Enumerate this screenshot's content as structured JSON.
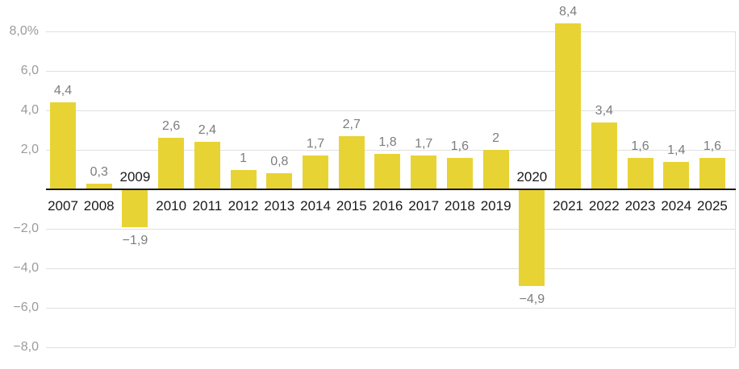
{
  "chart_data": {
    "type": "bar",
    "title": "",
    "xlabel": "",
    "ylabel": "",
    "categories": [
      "2007",
      "2008",
      "2009",
      "2010",
      "2011",
      "2012",
      "2013",
      "2014",
      "2015",
      "2016",
      "2017",
      "2018",
      "2019",
      "2020",
      "2021",
      "2022",
      "2023",
      "2024",
      "2025"
    ],
    "values": [
      4.4,
      0.3,
      -1.9,
      2.6,
      2.4,
      1,
      0.8,
      1.7,
      2.7,
      1.8,
      1.7,
      1.6,
      2,
      -4.9,
      8.4,
      3.4,
      1.6,
      1.4,
      1.6
    ],
    "value_labels": [
      "4,4",
      "0,3",
      "−1,9",
      "2,6",
      "2,4",
      "1",
      "0,8",
      "1,7",
      "2,7",
      "1,8",
      "1,7",
      "1,6",
      "2",
      "−4,9",
      "8,4",
      "3,4",
      "1,6",
      "1,4",
      "1,6"
    ],
    "ylim": [
      -8.6,
      8.9
    ],
    "y_ticks": [
      {
        "value": 8,
        "label": "8,0%"
      },
      {
        "value": 6,
        "label": "6,0"
      },
      {
        "value": 4,
        "label": "4,0"
      },
      {
        "value": 2,
        "label": "2,0"
      },
      {
        "value": -2,
        "label": "−2,0"
      },
      {
        "value": -4,
        "label": "−4,0"
      },
      {
        "value": -6,
        "label": "−6,0"
      },
      {
        "value": -8,
        "label": "−8,0"
      }
    ],
    "grid": true,
    "legend": false,
    "colors": {
      "bar": "#E8D334",
      "grid": "#E0E0E0",
      "baseline": "#1A1A1A",
      "value_label": "#7D7D7D",
      "axis_tick_label": "#9B9B9B",
      "year_label": "#1A1A1A",
      "background": "#FFFFFF"
    }
  }
}
